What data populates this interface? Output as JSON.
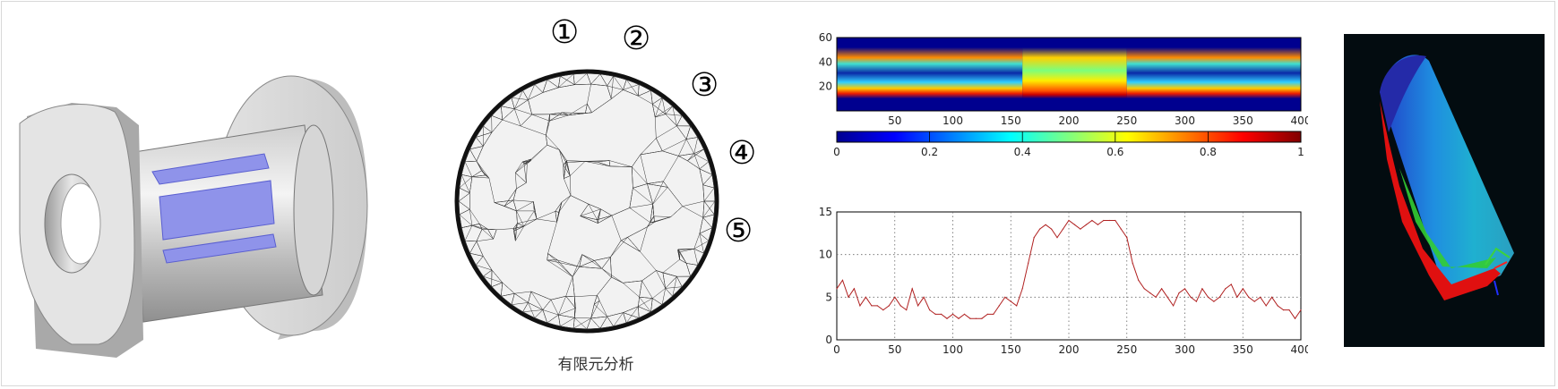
{
  "panels": {
    "cad_model": {
      "icon": "pipe-sensor-model"
    },
    "fem": {
      "caption": "有限元分析",
      "electrode_labels": [
        "①",
        "②",
        "③",
        "④",
        "⑤"
      ]
    },
    "heatmap": {
      "y_ticks": [
        "60",
        "40",
        "20"
      ],
      "x_ticks": [
        "50",
        "100",
        "150",
        "200",
        "250",
        "300",
        "350",
        "400"
      ],
      "colorbar_ticks": [
        "0",
        "0.2",
        "0.4",
        "0.6",
        "0.8",
        "1"
      ]
    },
    "line_chart": {
      "y_ticks": [
        "15",
        "10",
        "5",
        "0"
      ],
      "x_ticks": [
        "0",
        "50",
        "100",
        "150",
        "200",
        "250",
        "300",
        "350",
        "400"
      ]
    },
    "sim3d": {
      "icon": "3d-flow-simulation"
    }
  },
  "chart_data": [
    {
      "type": "heatmap",
      "xlim": [
        0,
        400
      ],
      "ylim": [
        0,
        60
      ],
      "colorbar_range": [
        0,
        1
      ],
      "colormap": "jet"
    },
    {
      "type": "line",
      "xlim": [
        0,
        400
      ],
      "ylim": [
        0,
        15
      ],
      "grid": true,
      "line_color": "#b02020",
      "x": [
        0,
        5,
        10,
        15,
        20,
        25,
        30,
        35,
        40,
        45,
        50,
        55,
        60,
        65,
        70,
        75,
        80,
        85,
        90,
        95,
        100,
        105,
        110,
        115,
        120,
        125,
        130,
        135,
        140,
        145,
        150,
        155,
        160,
        165,
        170,
        175,
        180,
        185,
        190,
        195,
        200,
        205,
        210,
        215,
        220,
        225,
        230,
        235,
        240,
        245,
        250,
        255,
        260,
        265,
        270,
        275,
        280,
        285,
        290,
        295,
        300,
        305,
        310,
        315,
        320,
        325,
        330,
        335,
        340,
        345,
        350,
        355,
        360,
        365,
        370,
        375,
        380,
        385,
        390,
        395,
        400
      ],
      "y": [
        6,
        7,
        5,
        6,
        4,
        5,
        4,
        4,
        3.5,
        4,
        5,
        4,
        3.5,
        6,
        4,
        5,
        3.5,
        3,
        3,
        2.5,
        3,
        2.5,
        3,
        2.5,
        2.5,
        2.5,
        3,
        3,
        4,
        5,
        4.5,
        4,
        6,
        9,
        12,
        13,
        13.5,
        13,
        12,
        13,
        14,
        13.5,
        13,
        13.5,
        14,
        13.5,
        14,
        14,
        14,
        13,
        12,
        9,
        7,
        6,
        5.5,
        5,
        6,
        5,
        4,
        5.5,
        6,
        5,
        4.5,
        6,
        5,
        4.5,
        5,
        6,
        6.5,
        5,
        6,
        5,
        4.5,
        5,
        4,
        5,
        4,
        3.5,
        3.5,
        2.5,
        3.5
      ]
    }
  ]
}
